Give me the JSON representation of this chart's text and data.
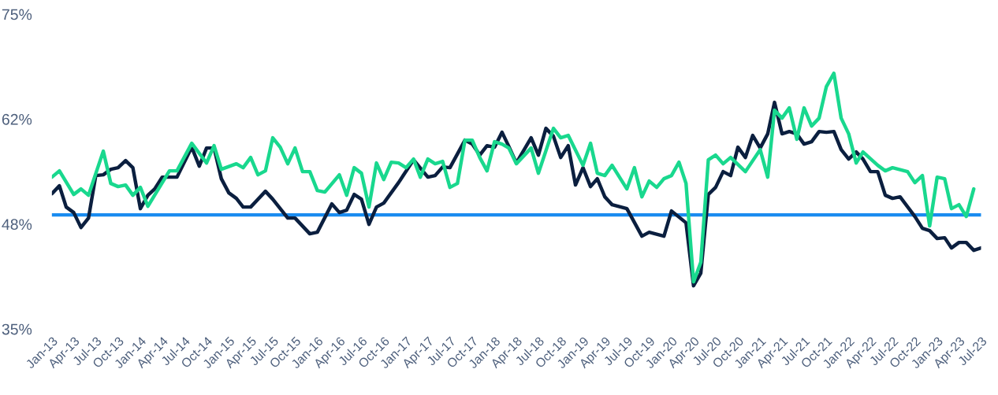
{
  "chart_data": {
    "type": "line",
    "series": [
      {
        "color": "#0b1f3f",
        "x": [
          "2013-01",
          "2013-02",
          "2013-03",
          "2013-04",
          "2013-05",
          "2013-06",
          "2013-07",
          "2013-08",
          "2013-09",
          "2013-10",
          "2013-11",
          "2013-12",
          "2014-01",
          "2014-02",
          "2014-03",
          "2014-04",
          "2014-06",
          "2014-08",
          "2014-09",
          "2014-10",
          "2014-11",
          "2014-12",
          "2015-01",
          "2015-02",
          "2015-03",
          "2015-04",
          "2015-06",
          "2015-07",
          "2015-09",
          "2015-10",
          "2015-12",
          "2016-01",
          "2016-03",
          "2016-04",
          "2016-05",
          "2016-06",
          "2016-07",
          "2016-08",
          "2016-09",
          "2016-10",
          "2016-12",
          "2017-02",
          "2017-04",
          "2017-05",
          "2017-06",
          "2017-07",
          "2017-09",
          "2017-10",
          "2017-11",
          "2017-12",
          "2018-01",
          "2018-02",
          "2018-03",
          "2018-04",
          "2018-06",
          "2018-07",
          "2018-08",
          "2018-09",
          "2018-10",
          "2018-11",
          "2018-12",
          "2019-01",
          "2019-02",
          "2019-03",
          "2019-04",
          "2019-05",
          "2019-07",
          "2019-09",
          "2019-10",
          "2019-12",
          "2020-01",
          "2020-03",
          "2020-04",
          "2020-05",
          "2020-06",
          "2020-07",
          "2020-08",
          "2020-09",
          "2020-10",
          "2020-11",
          "2020-12",
          "2021-01",
          "2021-02",
          "2021-03",
          "2021-04",
          "2021-05",
          "2021-06",
          "2021-07",
          "2021-08",
          "2021-09",
          "2021-10",
          "2021-11",
          "2021-12",
          "2022-01",
          "2022-02",
          "2022-03",
          "2022-04",
          "2022-05",
          "2022-06",
          "2022-07",
          "2022-08",
          "2022-10",
          "2022-11",
          "2022-12",
          "2023-01",
          "2023-02",
          "2023-03",
          "2023-04",
          "2023-05",
          "2023-06",
          "2023-07"
        ],
        "values": [
          52.2,
          53.2,
          50.5,
          49.8,
          47.9,
          49.1,
          54.5,
          54.6,
          55.3,
          55.5,
          56.4,
          55.5,
          50.3,
          52,
          52.8,
          54.3,
          54.3,
          58.1,
          55.7,
          58,
          58,
          54.1,
          52.3,
          51.6,
          50.5,
          50.5,
          52.5,
          51.5,
          49.1,
          49.1,
          47.1,
          47.3,
          50.9,
          49.8,
          50.1,
          52.1,
          51.5,
          48.3,
          50.5,
          51,
          53.6,
          56.5,
          54.3,
          54.5,
          55.6,
          55.5,
          59,
          58.5,
          57.1,
          58.3,
          58.1,
          60,
          58.2,
          56.1,
          59.3,
          57.1,
          60.5,
          59.5,
          56.8,
          58.3,
          53.3,
          55.5,
          53.1,
          54.1,
          51.8,
          50.8,
          50.3,
          46.8,
          47.3,
          46.8,
          50,
          48.5,
          40.5,
          42.1,
          52.1,
          53,
          55,
          54.5,
          58.1,
          56.8,
          59.6,
          58,
          59.8,
          63.8,
          59.8,
          60.1,
          59.8,
          58.5,
          58.8,
          60.1,
          60,
          60.1,
          57.8,
          56.6,
          57.5,
          56.6,
          55,
          55,
          52,
          51.6,
          51.8,
          49.3,
          47.8,
          47.5,
          46.5,
          46.6,
          45.3,
          46,
          46,
          45,
          45.3
        ]
      },
      {
        "color": "#19d88e",
        "x": [
          "2013-01",
          "2013-02",
          "2013-04",
          "2013-05",
          "2013-06",
          "2013-08",
          "2013-09",
          "2013-10",
          "2013-11",
          "2013-12",
          "2014-01",
          "2014-02",
          "2014-05",
          "2014-06",
          "2014-08",
          "2014-10",
          "2014-11",
          "2014-12",
          "2015-02",
          "2015-03",
          "2015-04",
          "2015-05",
          "2015-06",
          "2015-07",
          "2015-08",
          "2015-09",
          "2015-10",
          "2015-11",
          "2015-12",
          "2016-01",
          "2016-02",
          "2016-04",
          "2016-05",
          "2016-06",
          "2016-07",
          "2016-08",
          "2016-09",
          "2016-10",
          "2016-11",
          "2016-12",
          "2017-01",
          "2017-02",
          "2017-03",
          "2017-04",
          "2017-05",
          "2017-06",
          "2017-07",
          "2017-08",
          "2017-09",
          "2017-10",
          "2017-11",
          "2017-12",
          "2018-01",
          "2018-02",
          "2018-03",
          "2018-04",
          "2018-06",
          "2018-07",
          "2018-09",
          "2018-10",
          "2018-11",
          "2019-01",
          "2019-02",
          "2019-03",
          "2019-04",
          "2019-05",
          "2019-07",
          "2019-08",
          "2019-09",
          "2019-10",
          "2019-11",
          "2019-12",
          "2020-01",
          "2020-02",
          "2020-03",
          "2020-04",
          "2020-05",
          "2020-06",
          "2020-07",
          "2020-08",
          "2020-09",
          "2020-11",
          "2021-01",
          "2021-02",
          "2021-03",
          "2021-04",
          "2021-05",
          "2021-06",
          "2021-07",
          "2021-08",
          "2021-09",
          "2021-10",
          "2021-11",
          "2021-12",
          "2022-01",
          "2022-02",
          "2022-03",
          "2022-05",
          "2022-06",
          "2022-07",
          "2022-09",
          "2022-10",
          "2022-11",
          "2022-12",
          "2023-01",
          "2023-02",
          "2023-03",
          "2023-04",
          "2023-05",
          "2023-06"
        ],
        "values": [
          54.3,
          55.1,
          52.1,
          52.8,
          52,
          57.6,
          53.5,
          53.1,
          53.3,
          52,
          53,
          50.6,
          55.1,
          55.1,
          58.6,
          56.1,
          58.3,
          55.3,
          56,
          55.5,
          56.8,
          54.6,
          55.1,
          59.3,
          58.1,
          56,
          58,
          55,
          55,
          52.6,
          52.4,
          54.6,
          52,
          55.5,
          54.8,
          50.5,
          56.1,
          54,
          56.2,
          56.1,
          55.5,
          56.6,
          54.3,
          56.6,
          56,
          56.3,
          53,
          53.5,
          59,
          59,
          56.8,
          55.1,
          58.8,
          58.5,
          58,
          56,
          58,
          54.8,
          60.5,
          59.3,
          59.6,
          55.8,
          58.6,
          54.8,
          54.5,
          55.8,
          52.8,
          55.5,
          51.8,
          53.8,
          53,
          54.1,
          54.5,
          56.2,
          53.5,
          41,
          43.5,
          56.5,
          57.1,
          56,
          56.8,
          55,
          57.8,
          54.3,
          62.8,
          61.8,
          63.1,
          59.1,
          63.1,
          60.8,
          61.8,
          65.8,
          67.5,
          61.8,
          59.8,
          56.1,
          57.5,
          55.8,
          55.1,
          55.5,
          55,
          53.6,
          54.5,
          48.1,
          54.3,
          54.1,
          50.3,
          50.8,
          49.3,
          52.8
        ]
      }
    ],
    "xlim": [
      "2013-01",
      "2023-07"
    ],
    "xticks": [
      {
        "value": "2013-01",
        "label": "Jan-13"
      },
      {
        "value": "2013-04",
        "label": "Apr-13"
      },
      {
        "value": "2013-07",
        "label": "Jul-13"
      },
      {
        "value": "2013-10",
        "label": "Oct-13"
      },
      {
        "value": "2014-01",
        "label": "Jan-14"
      },
      {
        "value": "2014-04",
        "label": "Apr-14"
      },
      {
        "value": "2014-07",
        "label": "Jul-14"
      },
      {
        "value": "2014-10",
        "label": "Oct-14"
      },
      {
        "value": "2015-01",
        "label": "Jan-15"
      },
      {
        "value": "2015-04",
        "label": "Apr-15"
      },
      {
        "value": "2015-07",
        "label": "Jul-15"
      },
      {
        "value": "2015-10",
        "label": "Oct-15"
      },
      {
        "value": "2016-01",
        "label": "Jan-16"
      },
      {
        "value": "2016-04",
        "label": "Apr-16"
      },
      {
        "value": "2016-07",
        "label": "Jul-16"
      },
      {
        "value": "2016-10",
        "label": "Oct-16"
      },
      {
        "value": "2017-01",
        "label": "Jan-17"
      },
      {
        "value": "2017-04",
        "label": "Apr-17"
      },
      {
        "value": "2017-07",
        "label": "Jul-17"
      },
      {
        "value": "2017-10",
        "label": "Oct-17"
      },
      {
        "value": "2018-01",
        "label": "Jan-18"
      },
      {
        "value": "2018-04",
        "label": "Apr-18"
      },
      {
        "value": "2018-07",
        "label": "Jul-18"
      },
      {
        "value": "2018-10",
        "label": "Oct-18"
      },
      {
        "value": "2019-01",
        "label": "Jan-19"
      },
      {
        "value": "2019-04",
        "label": "Apr-19"
      },
      {
        "value": "2019-07",
        "label": "Jul-19"
      },
      {
        "value": "2019-10",
        "label": "Oct-19"
      },
      {
        "value": "2020-01",
        "label": "Jan-20"
      },
      {
        "value": "2020-04",
        "label": "Apr-20"
      },
      {
        "value": "2020-07",
        "label": "Jul-20"
      },
      {
        "value": "2020-10",
        "label": "Oct-20"
      },
      {
        "value": "2021-01",
        "label": "Jan-21"
      },
      {
        "value": "2021-04",
        "label": "Apr-21"
      },
      {
        "value": "2021-07",
        "label": "Jul-21"
      },
      {
        "value": "2021-10",
        "label": "Oct-21"
      },
      {
        "value": "2022-01",
        "label": "Jan-22"
      },
      {
        "value": "2022-04",
        "label": "Apr-22"
      },
      {
        "value": "2022-07",
        "label": "Jul-22"
      },
      {
        "value": "2022-10",
        "label": "Oct-22"
      },
      {
        "value": "2023-01",
        "label": "Jan-23"
      },
      {
        "value": "2023-04",
        "label": "Apr-23"
      },
      {
        "value": "2023-07",
        "label": "Jul-23"
      }
    ],
    "ylim": [
      35,
      75
    ],
    "yticks": [
      {
        "value": 35,
        "label": "35%"
      },
      {
        "value": 48.33,
        "label": "48%"
      },
      {
        "value": 61.67,
        "label": "62%"
      },
      {
        "value": 75,
        "label": "75%"
      }
    ],
    "ref_lines": [
      {
        "axis": "y",
        "value": 49.5,
        "color": "#1a8cf0",
        "line_style": "solid"
      }
    ],
    "grid": false,
    "legend": false,
    "marker": "none",
    "line_style": "solid"
  }
}
